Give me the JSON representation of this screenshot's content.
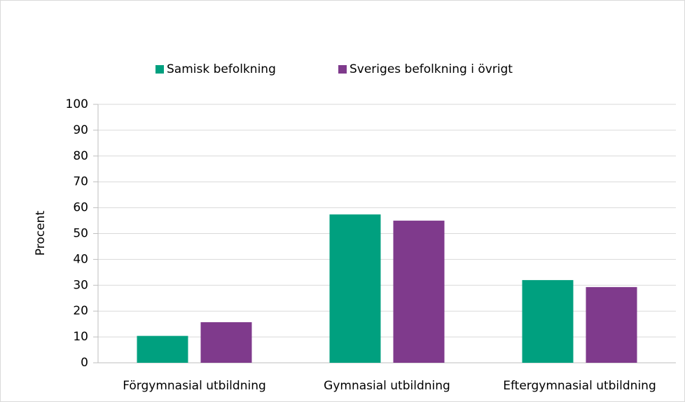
{
  "chart_data": {
    "type": "bar",
    "categories": [
      "Förgymnasial utbildning",
      "Gymnasial utbildning",
      "Eftergymnasial utbildning"
    ],
    "series": [
      {
        "name": "Samisk befolkning",
        "color": "#00a07f",
        "values": [
          10.4,
          57.4,
          32
        ]
      },
      {
        "name": "Sveriges befolkning i övrigt",
        "color": "#7f3a8c",
        "values": [
          15.7,
          55,
          29.3
        ]
      }
    ],
    "ylabel": "Procent",
    "ylim": [
      0,
      100
    ],
    "yticks": [
      0,
      10,
      20,
      30,
      40,
      50,
      60,
      70,
      80,
      90,
      100
    ],
    "grid": true
  }
}
